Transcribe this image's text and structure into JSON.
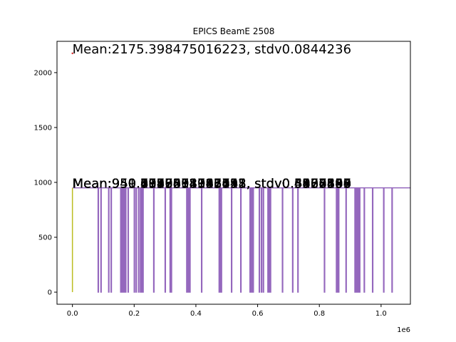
{
  "chart_data": {
    "type": "line",
    "title": "EPICS BeamE 2508",
    "xlabel": "",
    "ylabel": "",
    "x_offset_label": "1e6",
    "xlim": [
      -0.05,
      1.095
    ],
    "ylim": [
      -110,
      2285
    ],
    "x_ticks": [
      0.0,
      0.2,
      0.4,
      0.6,
      0.8,
      1.0
    ],
    "x_tick_labels": [
      "0.0",
      "0.2",
      "0.4",
      "0.6",
      "0.8",
      "1.0"
    ],
    "y_ticks": [
      0,
      500,
      1000,
      1500,
      2000
    ],
    "y_tick_labels": [
      "0",
      "500",
      "1000",
      "1500",
      "2000"
    ],
    "grid": false,
    "series": [
      {
        "name": "",
        "color": "#9467bd",
        "baseline": 950,
        "dropout_x": [
          0.083,
          0.092,
          0.117,
          0.125,
          0.156,
          0.16,
          0.163,
          0.166,
          0.169,
          0.172,
          0.18,
          0.2,
          0.206,
          0.214,
          0.22,
          0.224,
          0.228,
          0.263,
          0.3,
          0.316,
          0.32,
          0.37,
          0.375,
          0.38,
          0.418,
          0.475,
          0.48,
          0.482,
          0.515,
          0.545,
          0.575,
          0.58,
          0.585,
          0.605,
          0.612,
          0.618,
          0.633,
          0.637,
          0.641,
          0.68,
          0.713,
          0.73,
          0.816,
          0.855,
          0.86,
          0.862,
          0.886,
          0.915,
          0.92,
          0.923,
          0.926,
          0.93,
          0.945,
          0.972,
          1.008,
          1.035
        ],
        "min_value": 0
      },
      {
        "name": "",
        "color": "#bcbd22",
        "x": [
          0.0,
          0.0
        ],
        "y": [
          0,
          950
        ]
      },
      {
        "name": "",
        "color": "#d62728",
        "x": [
          0.0
        ],
        "y": [
          2175.4
        ]
      }
    ],
    "annotations": [
      {
        "text": "Mean:2175.398475016223, stdv0.0844236",
        "x": 0.0,
        "y": 2175.4
      },
      {
        "text": "Mean:950.4997574183441, stdv0.5000234",
        "x": 0.0,
        "y": 950.5
      },
      {
        "text": "Mean:951.2935402116731, stdv0.4567890",
        "x": 0.0,
        "y": 950.5
      },
      {
        "text": "Mean:949.8870012345611, stdv0.6123456",
        "x": 0.0,
        "y": 950.5
      },
      {
        "text": "Mean:950.0012378945123, stdv0.3987654",
        "x": 0.0,
        "y": 950.5
      },
      {
        "text": "Mean:950.7756231098712, stdv0.5567890",
        "x": 0.0,
        "y": 950.5
      },
      {
        "text": "Mean:950.3349812367452, stdv0.4876543",
        "x": 0.0,
        "y": 950.5
      },
      {
        "text": "Mean:950.6123498712345, stdv0.5234567",
        "x": 0.0,
        "y": 950.5
      },
      {
        "text": "Mean:950.1187654321098, stdv0.4432109",
        "x": 0.0,
        "y": 950.5
      }
    ]
  }
}
